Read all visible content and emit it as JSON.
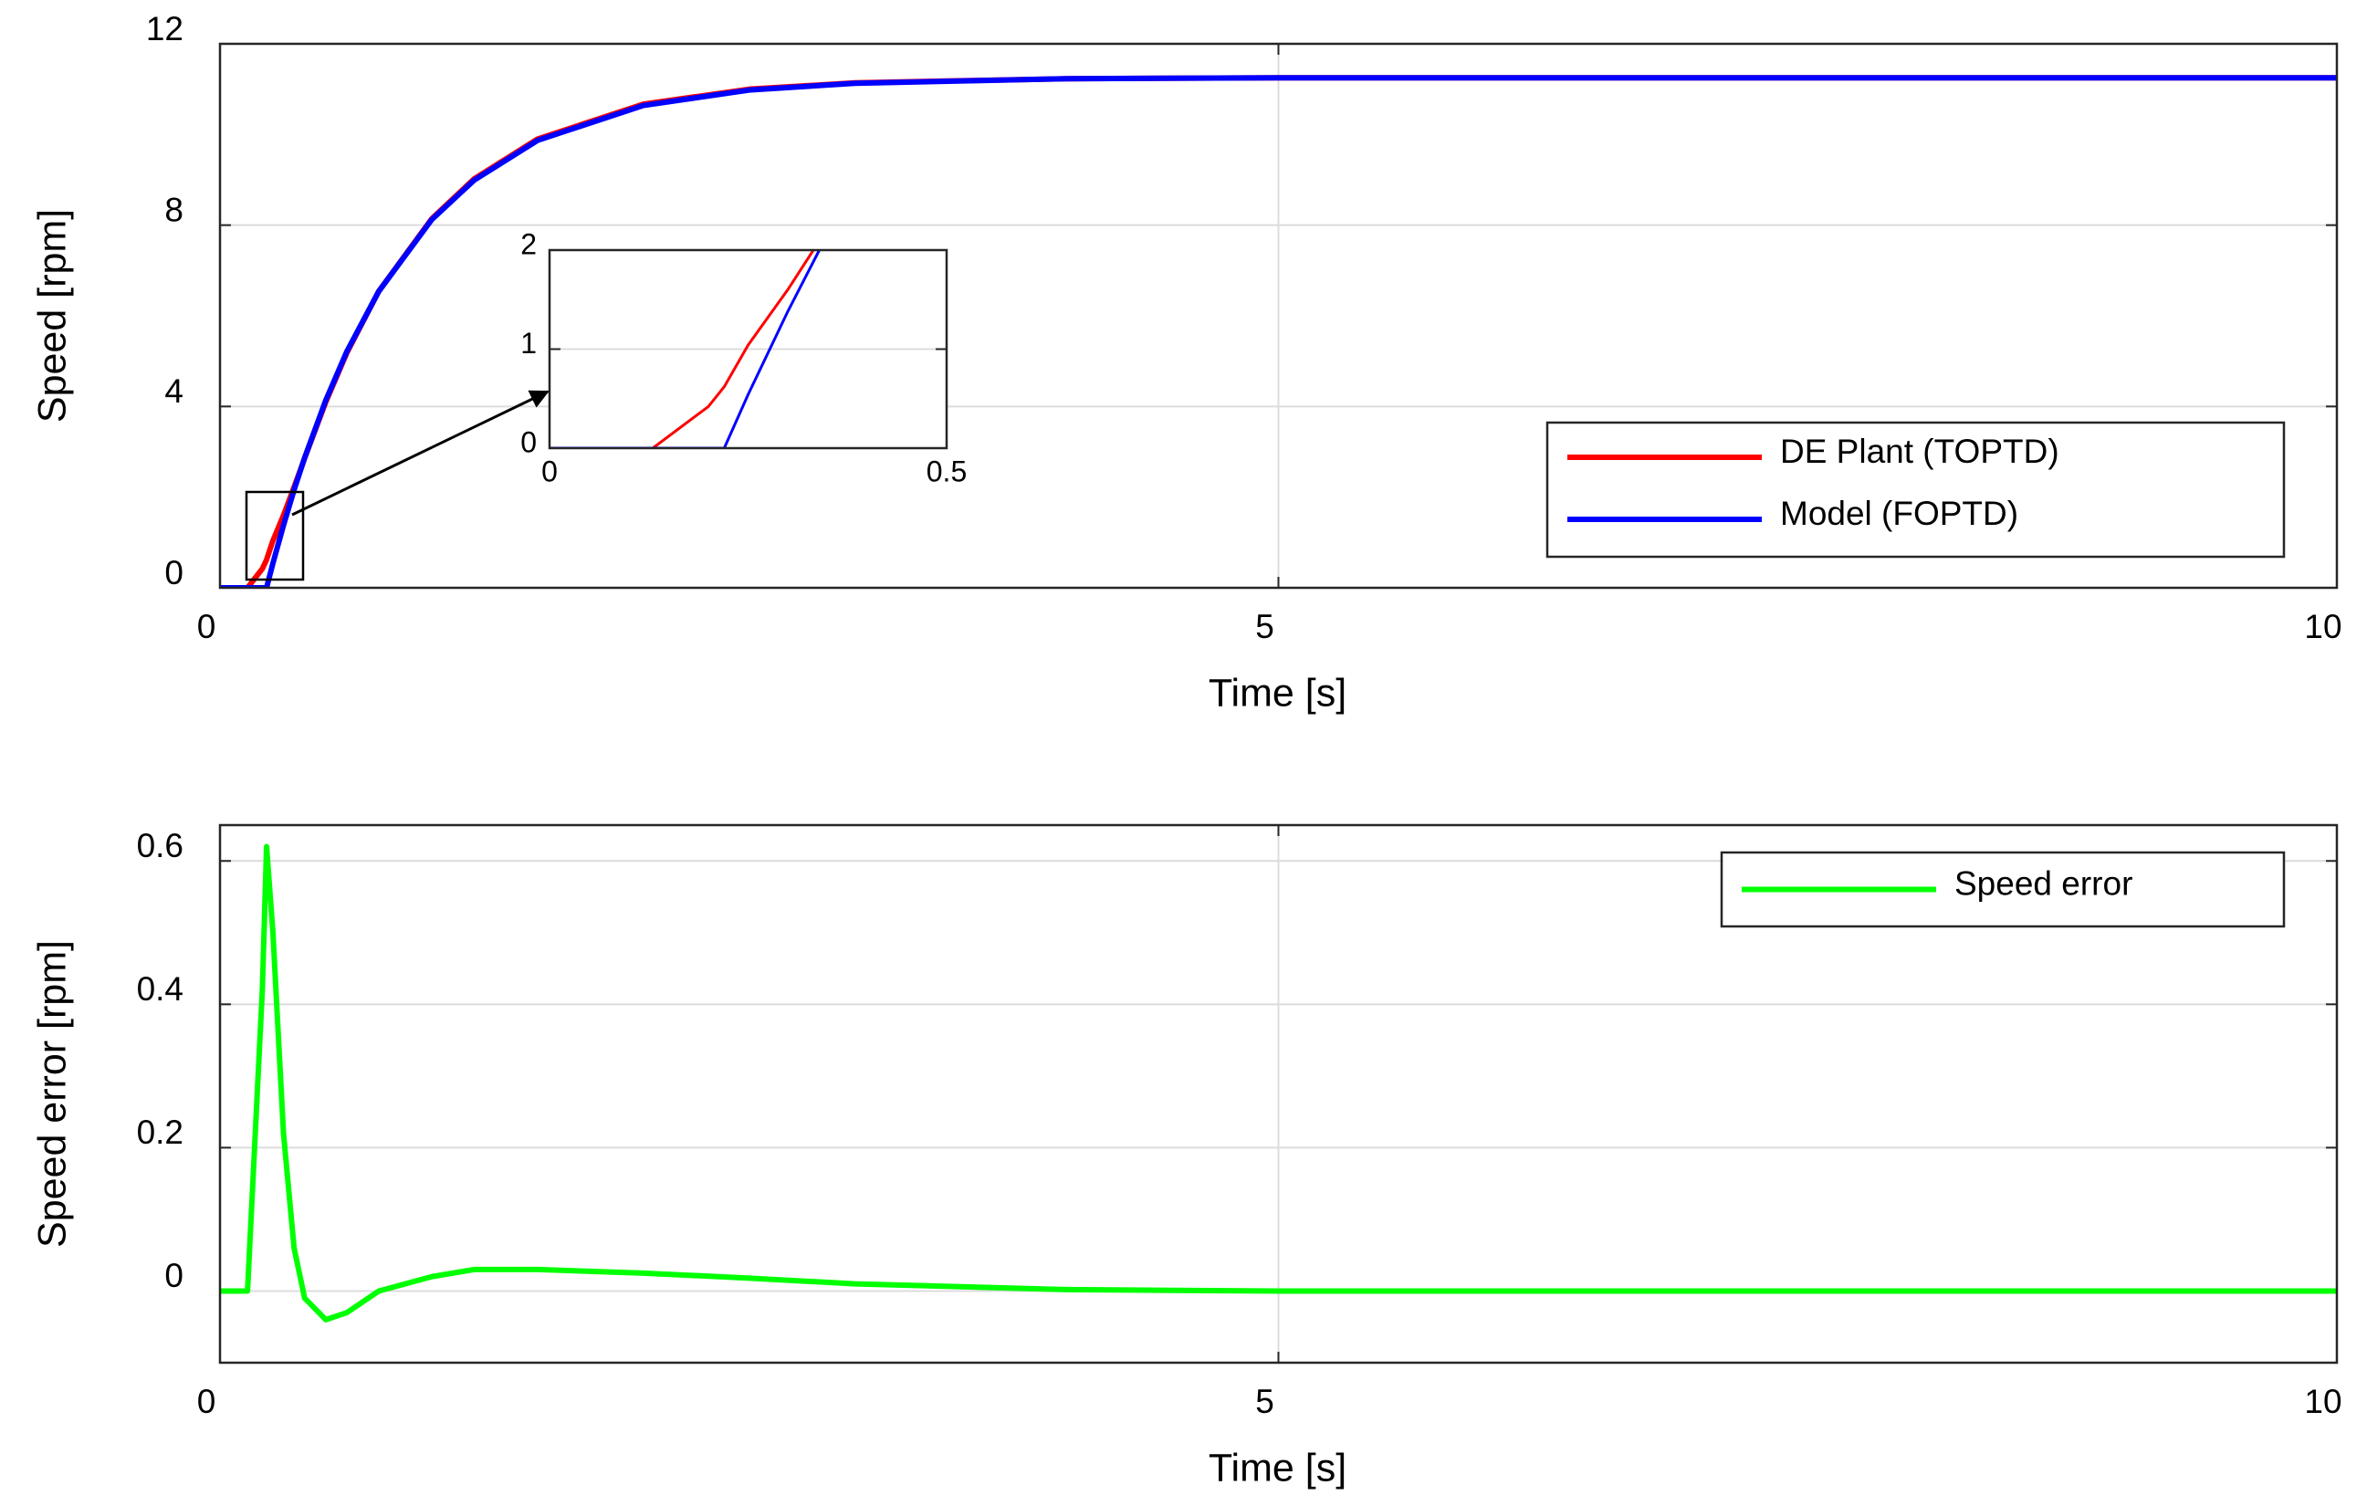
{
  "chart_data": [
    {
      "type": "line",
      "ylabel": "Speed [rpm]",
      "xlabel": "Time [s]",
      "x": [
        0,
        0.13,
        0.2,
        0.22,
        0.25,
        0.3,
        0.35,
        0.4,
        0.5,
        0.6,
        0.75,
        1,
        1.2,
        1.5,
        2,
        2.5,
        3,
        4,
        5,
        10
      ],
      "series": [
        {
          "name": "DE Plant (TOPTD)",
          "color": "#ff0000",
          "values": [
            0,
            0,
            0.42,
            0.62,
            1.04,
            1.6,
            2.22,
            2.86,
            4.1,
            5.19,
            6.54,
            8.14,
            9.02,
            9.9,
            10.67,
            11.0,
            11.14,
            11.23,
            11.25,
            11.25
          ]
        },
        {
          "name": "Model (FOPTD)",
          "color": "#0000ff",
          "values": [
            0,
            0,
            0,
            0,
            0.54,
            1.38,
            2.16,
            2.87,
            4.14,
            5.22,
            6.54,
            8.12,
            8.99,
            9.87,
            10.64,
            10.98,
            11.13,
            11.23,
            11.25,
            11.25
          ]
        }
      ],
      "xlim": [
        0,
        10
      ],
      "xticks": [
        0,
        5,
        10
      ],
      "ylim": [
        0,
        12
      ],
      "yticks": [
        0,
        4,
        8,
        12
      ],
      "grid": true,
      "legend": "lower right"
    },
    {
      "type": "line",
      "x": [
        0,
        0.13,
        0.2,
        0.22,
        0.25,
        0.3,
        0.35
      ],
      "series": [
        {
          "color": "#ff0000",
          "values": [
            0,
            0,
            0.42,
            0.62,
            1.04,
            1.6,
            2.22
          ]
        },
        {
          "color": "#0000ff",
          "values": [
            0,
            0,
            0,
            0,
            0.54,
            1.38,
            2.16
          ]
        }
      ],
      "xlim": [
        0,
        0.5
      ],
      "xticks": [
        0,
        0.5
      ],
      "ylim": [
        0,
        2
      ],
      "yticks": [
        0,
        1,
        2
      ],
      "grid": true
    },
    {
      "type": "line",
      "ylabel": "Speed error [rpm]",
      "xlabel": "Time [s]",
      "x": [
        0,
        0.13,
        0.2,
        0.22,
        0.25,
        0.3,
        0.35,
        0.4,
        0.5,
        0.6,
        0.75,
        1,
        1.2,
        1.5,
        2,
        2.5,
        3,
        4,
        5,
        10
      ],
      "series": [
        {
          "name": "Speed error",
          "color": "#00ff00",
          "values": [
            0,
            0,
            0.42,
            0.62,
            0.5,
            0.22,
            0.06,
            -0.01,
            -0.04,
            -0.03,
            0,
            0.02,
            0.03,
            0.03,
            0.025,
            0.018,
            0.01,
            0.002,
            0,
            0
          ]
        }
      ],
      "xlim": [
        0,
        10
      ],
      "xticks": [
        0,
        5,
        10
      ],
      "ylim": [
        -0.1,
        0.65
      ],
      "yticks": [
        0,
        0.2,
        0.4,
        0.6
      ],
      "grid": true,
      "legend": "upper right"
    }
  ]
}
